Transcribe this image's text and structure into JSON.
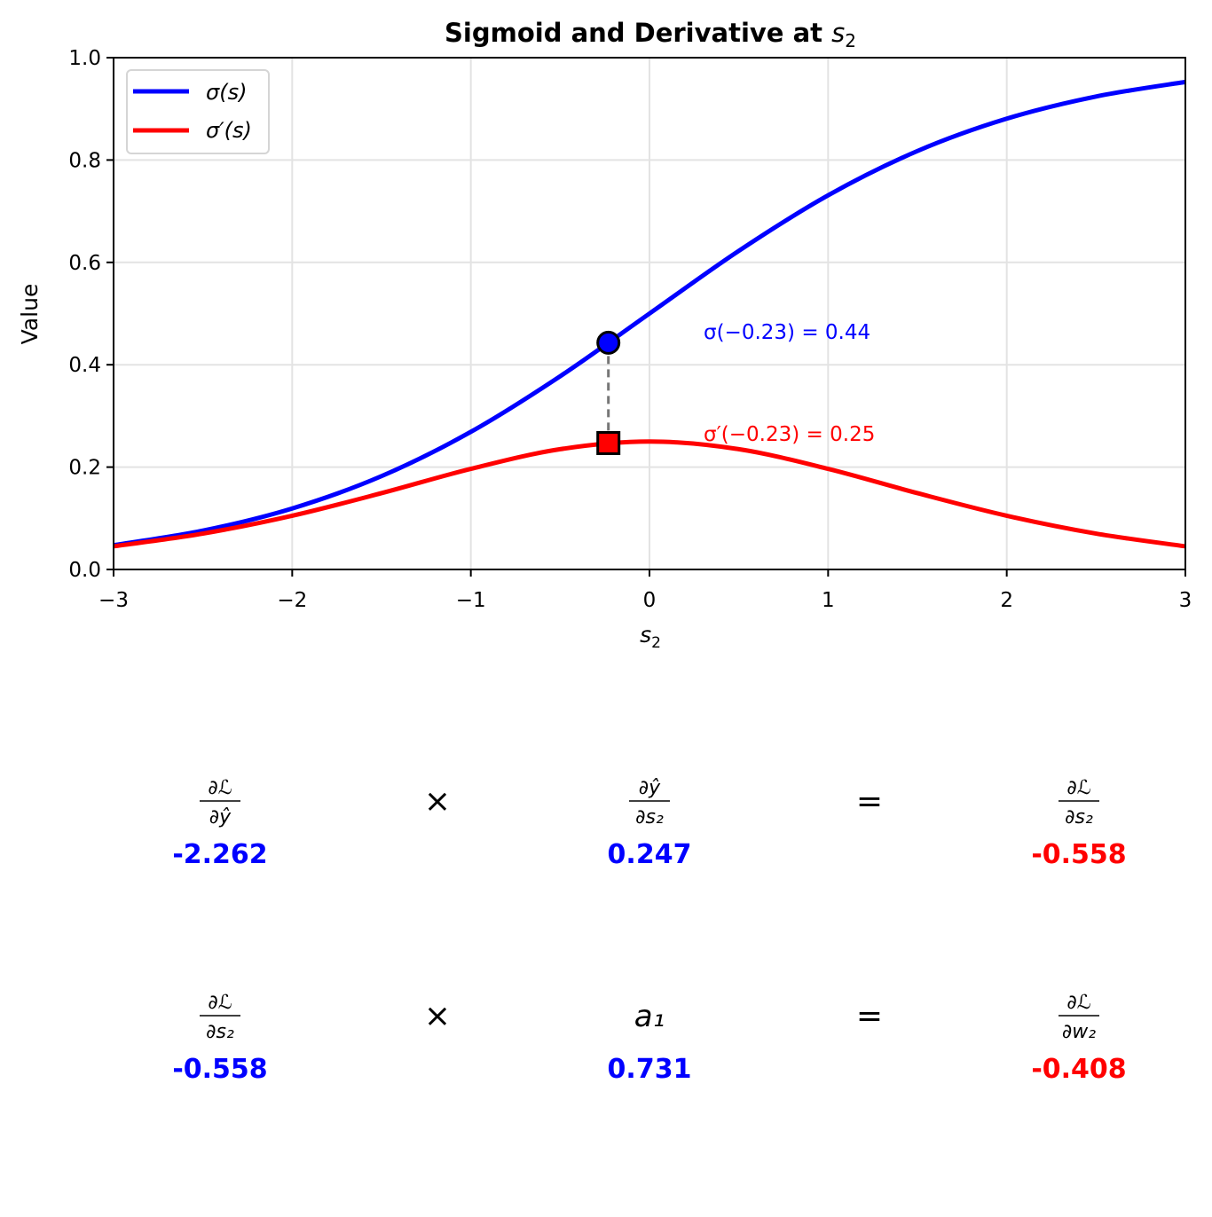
{
  "chart_data": {
    "type": "line",
    "title": "Sigmoid and Derivative at ",
    "title_var": "s",
    "title_sub": "2",
    "xlabel": "s",
    "xlabel_sub": "2",
    "ylabel": "Value",
    "xlim": [
      -3,
      3
    ],
    "ylim": [
      0,
      1
    ],
    "grid": true,
    "legend_position": "top-left",
    "xticks": [
      -3,
      -2,
      -1,
      0,
      1,
      2,
      3
    ],
    "xtick_labels": [
      "−3",
      "−2",
      "−1",
      "0",
      "1",
      "2",
      "3"
    ],
    "yticks": [
      0,
      0.2,
      0.4,
      0.6,
      0.8,
      1.0
    ],
    "ytick_labels": [
      "0.0",
      "0.2",
      "0.4",
      "0.6",
      "0.8",
      "1.0"
    ],
    "x": [
      -3,
      -2.5,
      -2,
      -1.5,
      -1,
      -0.5,
      0,
      0.5,
      1,
      1.5,
      2,
      2.5,
      3
    ],
    "series": [
      {
        "name": "σ(s)",
        "color": "#0000ff",
        "values": [
          0.0474,
          0.0759,
          0.1192,
          0.1824,
          0.2689,
          0.3775,
          0.5,
          0.6225,
          0.7311,
          0.8176,
          0.8808,
          0.9241,
          0.9526
        ]
      },
      {
        "name": "σ′(s)",
        "color": "#ff0000",
        "values": [
          0.0452,
          0.0701,
          0.105,
          0.1491,
          0.1966,
          0.235,
          0.25,
          0.235,
          0.1966,
          0.1491,
          0.105,
          0.0701,
          0.0452
        ]
      }
    ],
    "highlight": {
      "x": -0.23,
      "sigma": 0.443,
      "dsigma": 0.247,
      "sigma_label": "σ(−0.23) = 0.44",
      "dsigma_label": "σ′(−0.23) = 0.25"
    }
  },
  "equations": [
    {
      "terms": [
        {
          "num": "∂ℒ",
          "den": "∂ŷ",
          "value": "-2.262",
          "color": "#0000ff"
        },
        {
          "num": "∂ŷ",
          "den": "∂s₂",
          "value": "0.247",
          "color": "#0000ff"
        },
        {
          "num": "∂ℒ",
          "den": "∂s₂",
          "value": "-0.558",
          "color": "#ff0000"
        }
      ],
      "op1": "×",
      "op2": "="
    },
    {
      "terms": [
        {
          "num": "∂ℒ",
          "den": "∂s₂",
          "value": "-0.558",
          "color": "#0000ff"
        },
        {
          "symbol": "a₁",
          "value": "0.731",
          "color": "#0000ff"
        },
        {
          "num": "∂ℒ",
          "den": "∂w₂",
          "value": "-0.408",
          "color": "#ff0000"
        }
      ],
      "op1": "×",
      "op2": "="
    }
  ]
}
